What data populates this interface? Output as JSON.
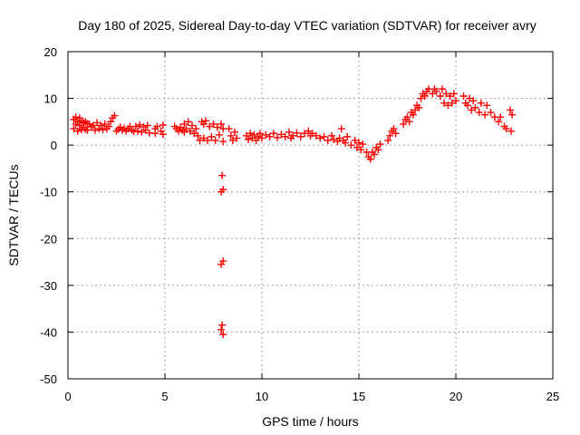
{
  "chart_data": {
    "type": "scatter",
    "title": "Day 180 of 2025, Sidereal Day-to-day VTEC variation (SDTVAR) for receiver avry",
    "xlabel": "GPS time / hours",
    "ylabel": "SDTVAR / TECUs",
    "xlim": [
      0,
      25
    ],
    "ylim": [
      -50,
      20
    ],
    "xticks": [
      0,
      5,
      10,
      15,
      20,
      25
    ],
    "yticks": [
      -50,
      -40,
      -30,
      -20,
      -10,
      0,
      10,
      20
    ],
    "xtick_labels": [
      "0",
      "5",
      "10",
      "15",
      "20",
      "25"
    ],
    "ytick_labels": [
      "-50",
      "-40",
      "-30",
      "-20",
      "-10",
      "0",
      "10",
      "20"
    ],
    "grid": true,
    "marker": "+",
    "color": "#ff0000",
    "series": [
      {
        "name": "SDTVAR",
        "points": [
          [
            0.3,
            5.5
          ],
          [
            0.3,
            3.5
          ],
          [
            0.4,
            6.0
          ],
          [
            0.4,
            4.5
          ],
          [
            0.5,
            5.0
          ],
          [
            0.5,
            3.0
          ],
          [
            0.6,
            5.8
          ],
          [
            0.6,
            4.2
          ],
          [
            0.7,
            5.2
          ],
          [
            0.7,
            3.3
          ],
          [
            0.8,
            4.8
          ],
          [
            0.8,
            3.8
          ],
          [
            0.9,
            5.0
          ],
          [
            0.9,
            3.4
          ],
          [
            1.0,
            4.6
          ],
          [
            1.0,
            3.2
          ],
          [
            1.1,
            4.5
          ],
          [
            1.2,
            3.9
          ],
          [
            1.3,
            4.2
          ],
          [
            1.4,
            3.2
          ],
          [
            1.5,
            4.8
          ],
          [
            1.6,
            3.5
          ],
          [
            1.7,
            4.2
          ],
          [
            1.8,
            3.3
          ],
          [
            1.9,
            4.5
          ],
          [
            2.0,
            3.5
          ],
          [
            2.1,
            4.0
          ],
          [
            2.2,
            5.0
          ],
          [
            2.3,
            5.8
          ],
          [
            2.4,
            6.3
          ],
          [
            2.5,
            3.0
          ],
          [
            2.6,
            3.4
          ],
          [
            2.7,
            3.8
          ],
          [
            2.8,
            3.2
          ],
          [
            2.9,
            3.6
          ],
          [
            3.0,
            3.0
          ],
          [
            3.1,
            3.5
          ],
          [
            3.2,
            4.0
          ],
          [
            3.3,
            3.2
          ],
          [
            3.4,
            2.9
          ],
          [
            3.5,
            4.0
          ],
          [
            3.6,
            3.0
          ],
          [
            3.7,
            4.3
          ],
          [
            3.8,
            2.8
          ],
          [
            3.9,
            3.9
          ],
          [
            4.0,
            3.2
          ],
          [
            4.1,
            4.2
          ],
          [
            4.2,
            2.6
          ],
          [
            4.5,
            3.5
          ],
          [
            4.5,
            2.5
          ],
          [
            4.6,
            4.0
          ],
          [
            4.8,
            3.0
          ],
          [
            4.9,
            4.3
          ],
          [
            4.9,
            2.3
          ],
          [
            5.5,
            4.0
          ],
          [
            5.6,
            3.5
          ],
          [
            5.7,
            3.0
          ],
          [
            5.8,
            3.8
          ],
          [
            5.9,
            3.2
          ],
          [
            6.0,
            4.5
          ],
          [
            6.0,
            2.8
          ],
          [
            6.1,
            3.5
          ],
          [
            6.2,
            5.0
          ],
          [
            6.3,
            3.0
          ],
          [
            6.4,
            4.2
          ],
          [
            6.5,
            2.5
          ],
          [
            6.6,
            3.5
          ],
          [
            6.7,
            2.0
          ],
          [
            6.8,
            1.0
          ],
          [
            6.9,
            5.0
          ],
          [
            7.0,
            1.5
          ],
          [
            7.0,
            4.5
          ],
          [
            7.1,
            5.2
          ],
          [
            7.2,
            1.0
          ],
          [
            7.3,
            4.0
          ],
          [
            7.4,
            1.8
          ],
          [
            7.5,
            4.5
          ],
          [
            7.6,
            1.0
          ],
          [
            7.7,
            3.8
          ],
          [
            7.8,
            2.2
          ],
          [
            7.9,
            4.5
          ],
          [
            8.0,
            0.8
          ],
          [
            8.0,
            3.5
          ],
          [
            7.95,
            -6.5
          ],
          [
            7.9,
            -10.0
          ],
          [
            8.0,
            -9.5
          ],
          [
            7.9,
            -25.5
          ],
          [
            8.0,
            -24.8
          ],
          [
            7.95,
            -38.5
          ],
          [
            7.9,
            -39.5
          ],
          [
            8.0,
            -40.5
          ],
          [
            8.3,
            3.5
          ],
          [
            8.4,
            2.0
          ],
          [
            8.5,
            1.0
          ],
          [
            8.6,
            2.8
          ],
          [
            8.7,
            1.5
          ],
          [
            9.2,
            2.0
          ],
          [
            9.3,
            1.2
          ],
          [
            9.4,
            2.5
          ],
          [
            9.5,
            1.5
          ],
          [
            9.6,
            2.2
          ],
          [
            9.7,
            1.0
          ],
          [
            9.8,
            1.8
          ],
          [
            9.9,
            2.5
          ],
          [
            10.0,
            1.5
          ],
          [
            10.2,
            2.2
          ],
          [
            10.4,
            1.8
          ],
          [
            10.6,
            2.5
          ],
          [
            10.8,
            1.6
          ],
          [
            11.0,
            2.3
          ],
          [
            11.2,
            1.8
          ],
          [
            11.4,
            2.8
          ],
          [
            11.5,
            1.5
          ],
          [
            11.6,
            2.0
          ],
          [
            11.8,
            2.6
          ],
          [
            12.0,
            1.8
          ],
          [
            12.2,
            2.5
          ],
          [
            12.4,
            3.0
          ],
          [
            12.5,
            2.0
          ],
          [
            12.6,
            2.5
          ],
          [
            12.8,
            2.0
          ],
          [
            13.0,
            1.5
          ],
          [
            13.2,
            1.8
          ],
          [
            13.4,
            1.0
          ],
          [
            13.6,
            2.0
          ],
          [
            13.7,
            1.2
          ],
          [
            13.9,
            0.8
          ],
          [
            14.0,
            1.5
          ],
          [
            14.1,
            3.5
          ],
          [
            14.2,
            1.0
          ],
          [
            14.3,
            0.5
          ],
          [
            14.4,
            1.8
          ],
          [
            14.6,
            0.0
          ],
          [
            14.8,
            1.0
          ],
          [
            14.9,
            -0.5
          ],
          [
            15.0,
            0.5
          ],
          [
            15.1,
            -1.0
          ],
          [
            15.2,
            0.2
          ],
          [
            15.4,
            -1.5
          ],
          [
            15.5,
            -2.5
          ],
          [
            15.6,
            -3.0
          ],
          [
            15.7,
            -1.5
          ],
          [
            15.8,
            -2.0
          ],
          [
            15.9,
            -0.5
          ],
          [
            16.0,
            -1.0
          ],
          [
            16.1,
            0.2
          ],
          [
            16.5,
            1.0
          ],
          [
            16.6,
            2.0
          ],
          [
            16.7,
            3.0
          ],
          [
            16.8,
            3.5
          ],
          [
            16.9,
            2.5
          ],
          [
            17.3,
            4.5
          ],
          [
            17.4,
            5.5
          ],
          [
            17.5,
            6.0
          ],
          [
            17.6,
            5.0
          ],
          [
            17.7,
            7.0
          ],
          [
            17.8,
            6.5
          ],
          [
            17.9,
            7.5
          ],
          [
            18.0,
            8.5
          ],
          [
            18.1,
            8.0
          ],
          [
            18.2,
            10.0
          ],
          [
            18.3,
            11.0
          ],
          [
            18.4,
            10.5
          ],
          [
            18.5,
            11.5
          ],
          [
            18.6,
            12.0
          ],
          [
            18.8,
            11.0
          ],
          [
            18.9,
            12.0
          ],
          [
            19.0,
            11.5
          ],
          [
            19.2,
            10.5
          ],
          [
            19.3,
            12.0
          ],
          [
            19.4,
            9.0
          ],
          [
            19.5,
            11.0
          ],
          [
            19.6,
            8.5
          ],
          [
            19.7,
            10.5
          ],
          [
            19.8,
            9.0
          ],
          [
            19.9,
            11.0
          ],
          [
            20.0,
            9.5
          ],
          [
            20.4,
            10.5
          ],
          [
            20.5,
            9.0
          ],
          [
            20.6,
            8.5
          ],
          [
            20.7,
            10.0
          ],
          [
            20.8,
            7.5
          ],
          [
            20.9,
            9.5
          ],
          [
            21.0,
            8.0
          ],
          [
            21.2,
            7.0
          ],
          [
            21.3,
            9.0
          ],
          [
            21.5,
            6.5
          ],
          [
            21.6,
            8.5
          ],
          [
            21.8,
            7.0
          ],
          [
            22.0,
            6.0
          ],
          [
            22.2,
            5.0
          ],
          [
            22.3,
            6.0
          ],
          [
            22.5,
            4.0
          ],
          [
            22.6,
            3.5
          ],
          [
            22.8,
            7.5
          ],
          [
            22.9,
            6.5
          ],
          [
            22.85,
            3.0
          ]
        ]
      }
    ]
  }
}
